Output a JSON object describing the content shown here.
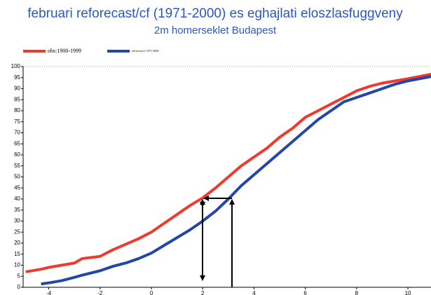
{
  "chart_data": {
    "type": "line",
    "title": "februari reforecast/cf (1971-2000) es eghajlati eloszlasfuggveny",
    "subtitle": "2m homerseklet Budapest",
    "x": [
      -4.9,
      -4.3,
      -4,
      -3.5,
      -3,
      -2.7,
      -2,
      -1.5,
      -1,
      -0.5,
      0,
      0.5,
      1,
      1.5,
      2,
      2.5,
      3,
      3.5,
      4,
      4.5,
      5,
      5.5,
      6,
      6.5,
      7,
      7.5,
      8,
      8.5,
      9,
      9.5,
      10,
      10.9
    ],
    "series": [
      {
        "name": "obs:1900-1999",
        "color": "#f03a2e",
        "values": [
          7,
          8.2,
          9,
          10,
          11,
          13,
          14,
          17,
          19.5,
          22,
          25,
          29,
          33,
          37,
          40.5,
          45,
          50,
          55,
          59,
          63,
          68,
          72,
          77,
          80,
          83,
          86,
          89,
          91,
          92.5,
          93.5,
          94.5,
          96.5
        ]
      },
      {
        "name": "reforecast/cf 1971-2000",
        "color": "#2446a8",
        "values": [
          null,
          1.5,
          2,
          3,
          4.5,
          5.5,
          7.5,
          9.5,
          11,
          13,
          15.5,
          19,
          22.5,
          26,
          30,
          34.5,
          40,
          46,
          51,
          56,
          61,
          66,
          71,
          76,
          80,
          84,
          86,
          88,
          90,
          92,
          93.5,
          95.5
        ]
      }
    ],
    "xlim": [
      -5,
      10.9
    ],
    "xticks": [
      -4,
      -2,
      0,
      2,
      4,
      6,
      8,
      10
    ],
    "ylim": [
      0,
      100
    ],
    "yticks": [
      0,
      5,
      10,
      15,
      20,
      25,
      30,
      35,
      40,
      45,
      50,
      55,
      60,
      65,
      70,
      75,
      80,
      85,
      90,
      95,
      100
    ],
    "legend": "top-left"
  }
}
